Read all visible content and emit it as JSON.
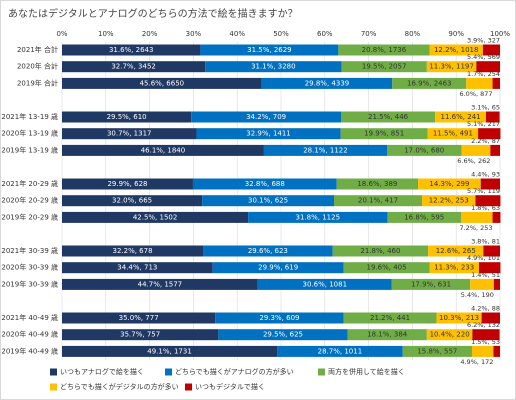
{
  "chart_data": {
    "type": "stacked-bar-horizontal",
    "title": "あなたはデジタルとアナログのどちらの方法で絵を描きますか？",
    "categories": [
      "2021年 合計",
      "2020年 合計",
      "2019年 合計",
      "2021年 13-19 歳",
      "2020年 13-19 歳",
      "2019年 13-19 歳",
      "2021年 20-29 歳",
      "2020年 20-29 歳",
      "2019年 20-29 歳",
      "2021年 30-39 歳",
      "2020年 30-39 歳",
      "2019年 30-39 歳",
      "2021年 40-49 歳",
      "2020年 40-49 歳",
      "2019年 40-49 歳"
    ],
    "xlim": [
      0,
      100
    ],
    "xticks": [
      {
        "value": 0,
        "label": "0%"
      },
      {
        "value": 10,
        "label": "10%"
      },
      {
        "value": 20,
        "label": "20%"
      },
      {
        "value": 30,
        "label": "30%"
      },
      {
        "value": 40,
        "label": "40%"
      },
      {
        "value": 50,
        "label": "50%"
      },
      {
        "value": 60,
        "label": "60%"
      },
      {
        "value": 70,
        "label": "70%"
      },
      {
        "value": 80,
        "label": "80%"
      },
      {
        "value": 90,
        "label": "90%"
      },
      {
        "value": 100,
        "label": "100%"
      }
    ],
    "series": [
      {
        "name": "いつもアナログで絵を描く",
        "color": "#203864",
        "values": [
          31.6,
          32.7,
          45.6,
          29.5,
          30.7,
          46.1,
          29.9,
          32.0,
          42.5,
          32.2,
          34.4,
          44.7,
          35.0,
          35.7,
          49.1
        ],
        "value_labels": [
          "31.6%, 2643",
          "32.7%, 3452",
          "45.6%, 6650",
          "29.5%, 610",
          "30.7%, 1317",
          "46.1%, 1840",
          "29.9%, 628",
          "32.0%, 665",
          "42.5%, 1502",
          "32.2%, 678",
          "34.4%, 713",
          "44.7%, 1577",
          "35.0%, 777",
          "35.7%, 757",
          "49.1%, 1731"
        ]
      },
      {
        "name": "どちらでも描くがアナログの方が多い",
        "color": "#0070c0",
        "values": [
          31.5,
          31.1,
          29.8,
          34.2,
          32.9,
          28.1,
          32.8,
          30.1,
          31.8,
          29.6,
          29.9,
          30.6,
          29.3,
          29.5,
          28.7
        ],
        "value_labels": [
          "31.5%, 2629",
          "31.1%, 3280",
          "29.8%, 4339",
          "34.2%, 709",
          "32.9%, 1411",
          "28.1%, 1122",
          "32.8%, 688",
          "30.1%, 625",
          "31.8%, 1125",
          "29.6%, 623",
          "29.9%, 619",
          "30.6%, 1081",
          "29.3%, 609",
          "29.5%, 625",
          "28.7%, 1011"
        ]
      },
      {
        "name": "両方を併用して絵を描く",
        "color": "#70ad47",
        "values": [
          20.8,
          19.5,
          16.9,
          21.5,
          19.9,
          17.0,
          18.6,
          20.1,
          16.8,
          21.8,
          19.6,
          17.9,
          21.2,
          18.1,
          15.8
        ],
        "value_labels": [
          "20.8%, 1736",
          "19.5%, 2057",
          "16.9%, 2463",
          "21.5%, 446",
          "19.9%, 851",
          "17.0%, 680",
          "18.6%, 389",
          "20.1%, 417",
          "16.8%, 595",
          "21.8%, 460",
          "19.6%, 405",
          "17.9%, 631",
          "21.2%, 441",
          "18.1%, 384",
          "15.8%, 557"
        ]
      },
      {
        "name": "どちらでも描くがデジタルの方が多い",
        "color": "#ffc000",
        "values": [
          12.2,
          11.3,
          6.0,
          11.6,
          11.5,
          6.6,
          14.3,
          12.2,
          7.2,
          12.6,
          11.3,
          5.4,
          10.3,
          10.4,
          4.9
        ],
        "value_labels": [
          "12.2%, 1018",
          "11.3%, 1197",
          "6.0%, 877",
          "11.6%, 241",
          "11.5%, 491",
          "6.6%, 262",
          "14.3%, 299",
          "12.2%, 253",
          "7.2%, 253",
          "12.6%, 265",
          "11.3%, 233",
          "5.4%, 190",
          "10.3%, 213",
          "10.4%, 220",
          "4.9%, 172"
        ]
      },
      {
        "name": "いつもデジタルで描く",
        "color": "#c00000",
        "values": [
          3.9,
          5.4,
          1.7,
          3.1,
          5.1,
          2.2,
          4.4,
          5.7,
          1.8,
          3.8,
          4.9,
          1.4,
          4.2,
          6.2,
          1.5
        ],
        "value_labels": [
          "3.9%, 327",
          "5.4%, 569",
          "1.7%, 254",
          "3.1%, 65",
          "5.1%, 217",
          "2.2%, 87",
          "4.4%, 93",
          "5.7%, 119",
          "1.8%, 63",
          "3.8%, 81",
          "4.9%, 101",
          "1.4%, 51",
          "4.2%, 88",
          "6.2%, 132",
          "1.5%, 53"
        ]
      }
    ]
  }
}
